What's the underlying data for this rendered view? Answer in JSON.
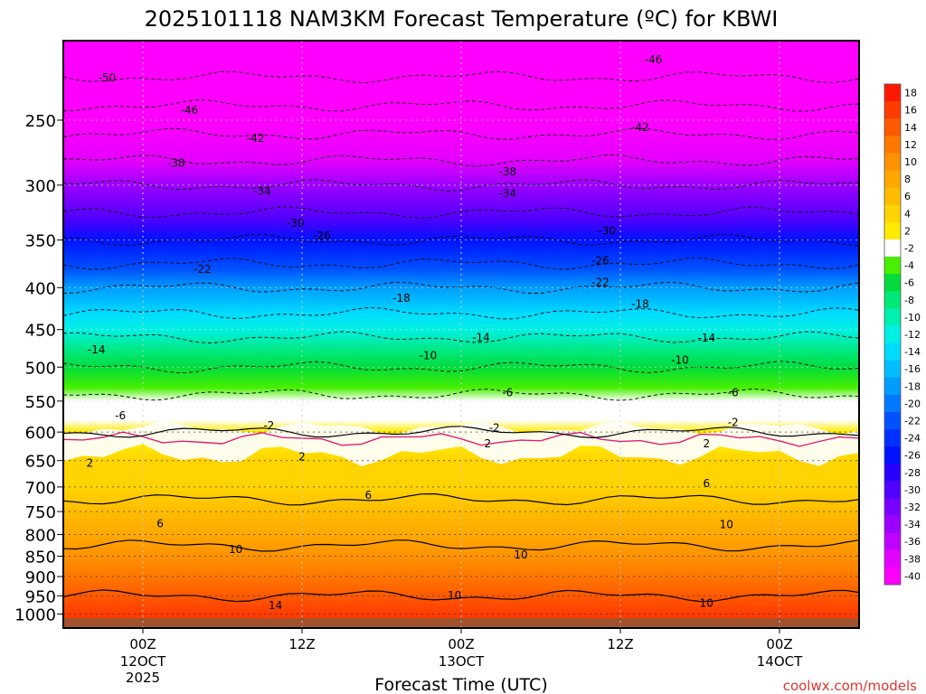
{
  "chart_data": {
    "type": "heatmap",
    "title": "2025101118 NAM3KM Forecast Temperature (ºC) for KBWI",
    "xlabel": "Forecast Time (UTC)",
    "ylabel": "",
    "x_ticks": [
      {
        "hour": 6,
        "label": "00Z",
        "sub1": "12OCT",
        "sub2": "2025"
      },
      {
        "hour": 18,
        "label": "12Z",
        "sub1": "",
        "sub2": ""
      },
      {
        "hour": 30,
        "label": "00Z",
        "sub1": "13OCT",
        "sub2": ""
      },
      {
        "hour": 42,
        "label": "12Z",
        "sub1": "",
        "sub2": ""
      },
      {
        "hour": 54,
        "label": "00Z",
        "sub1": "14OCT",
        "sub2": ""
      }
    ],
    "xlim_hours": [
      0,
      60
    ],
    "y_ticks": [
      250,
      300,
      350,
      400,
      450,
      500,
      550,
      600,
      650,
      700,
      750,
      800,
      850,
      900,
      950,
      1000
    ],
    "ylim_hpa": [
      200,
      1040
    ],
    "y_scale": "log",
    "ground_level_hpa": 1012,
    "colorbar": {
      "levels": [
        18,
        16,
        14,
        12,
        10,
        8,
        6,
        4,
        2,
        -2,
        -4,
        -6,
        -8,
        -10,
        -12,
        -14,
        -16,
        -18,
        -20,
        -22,
        -24,
        -26,
        -28,
        -30,
        -32,
        -34,
        -36,
        -38,
        -40
      ],
      "colors": [
        "#ff1800",
        "#ff3c00",
        "#ff5a00",
        "#ff7800",
        "#ff9200",
        "#ffa800",
        "#ffbc00",
        "#ffd400",
        "#ffea00",
        "#ffffff",
        "#48f000",
        "#00dc3c",
        "#00e878",
        "#00f0b0",
        "#00f0e4",
        "#00dcff",
        "#00beff",
        "#009cff",
        "#0078ff",
        "#0052ff",
        "#0030ff",
        "#0012ff",
        "#2800ff",
        "#5000ff",
        "#7800ff",
        "#9c00ff",
        "#c000ff",
        "#e400ff",
        "#ff00ff"
      ]
    },
    "temperature_profile": {
      "pressure_hpa": [
        200,
        230,
        250,
        280,
        300,
        330,
        350,
        380,
        400,
        430,
        450,
        480,
        500,
        530,
        550,
        580,
        600,
        620,
        650,
        700,
        750,
        800,
        850,
        900,
        950,
        1000
      ],
      "temp_c": [
        -55,
        -48,
        -44,
        -38,
        -34,
        -29,
        -26,
        -21,
        -18,
        -14,
        -11,
        -8,
        -6,
        -3,
        -1,
        1,
        2,
        3,
        4,
        5,
        7,
        9,
        11,
        12,
        14,
        16
      ]
    },
    "contour_labels": [
      {
        "text": "-50",
        "hour": 3.3,
        "p": 222
      },
      {
        "text": "-46",
        "hour": 9.5,
        "p": 243
      },
      {
        "text": "-42",
        "hour": 14.5,
        "p": 263
      },
      {
        "text": "-38",
        "hour": 8.5,
        "p": 282
      },
      {
        "text": "-34",
        "hour": 15,
        "p": 305
      },
      {
        "text": "-30",
        "hour": 17.5,
        "p": 334
      },
      {
        "text": "-26",
        "hour": 19.5,
        "p": 346
      },
      {
        "text": "-22",
        "hour": 10.5,
        "p": 380
      },
      {
        "text": "-18",
        "hour": 25.5,
        "p": 412
      },
      {
        "text": "-14",
        "hour": 2.5,
        "p": 476
      },
      {
        "text": "-10",
        "hour": 27.5,
        "p": 484
      },
      {
        "text": "-6",
        "hour": 4.3,
        "p": 573
      },
      {
        "text": "-2",
        "hour": 15.5,
        "p": 589
      },
      {
        "text": "-46",
        "hour": 44.5,
        "p": 211
      },
      {
        "text": "-42",
        "hour": 43.5,
        "p": 255
      },
      {
        "text": "-38",
        "hour": 33.5,
        "p": 289
      },
      {
        "text": "-34",
        "hour": 33.5,
        "p": 307
      },
      {
        "text": "-30",
        "hour": 41,
        "p": 341
      },
      {
        "text": "-26",
        "hour": 40.5,
        "p": 371
      },
      {
        "text": "-22",
        "hour": 40.5,
        "p": 394
      },
      {
        "text": "-18",
        "hour": 43.5,
        "p": 419
      },
      {
        "text": "-14",
        "hour": 31.5,
        "p": 460
      },
      {
        "text": "-10",
        "hour": 46.5,
        "p": 490
      },
      {
        "text": "-6",
        "hour": 33.5,
        "p": 537
      },
      {
        "text": "-2",
        "hour": 32.5,
        "p": 593
      },
      {
        "text": "-14",
        "hour": 48.5,
        "p": 461
      },
      {
        "text": "-6",
        "hour": 50.5,
        "p": 537
      },
      {
        "text": "-2",
        "hour": 50.5,
        "p": 584
      },
      {
        "text": "2",
        "hour": 2.0,
        "p": 655
      },
      {
        "text": "2",
        "hour": 18.0,
        "p": 643
      },
      {
        "text": "2",
        "hour": 32.0,
        "p": 620
      },
      {
        "text": "2",
        "hour": 48.5,
        "p": 620
      },
      {
        "text": "6",
        "hour": 23.0,
        "p": 716
      },
      {
        "text": "6",
        "hour": 7.3,
        "p": 776
      },
      {
        "text": "6",
        "hour": 48.5,
        "p": 693
      },
      {
        "text": "10",
        "hour": 13.0,
        "p": 834
      },
      {
        "text": "10",
        "hour": 34.5,
        "p": 847
      },
      {
        "text": "10",
        "hour": 50.0,
        "p": 778
      },
      {
        "text": "10",
        "hour": 29.5,
        "p": 949
      },
      {
        "text": "10",
        "hour": 48.5,
        "p": 970
      },
      {
        "text": "14",
        "hour": 16.0,
        "p": 976
      }
    ],
    "credit": "coolwx.com/models"
  }
}
